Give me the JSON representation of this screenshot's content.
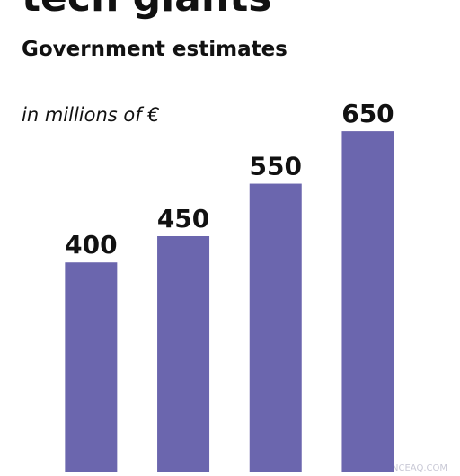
{
  "chart_data": {
    "type": "bar",
    "title": "tech giants",
    "subtitle": "Government estimates",
    "unit_label": "in millions of €",
    "categories": [
      null,
      null,
      null,
      null
    ],
    "values": [
      400,
      450,
      550,
      650
    ],
    "color": "#6b66ae",
    "ylim": [
      0,
      900
    ],
    "watermark": "SCIENCEAQ.COM"
  }
}
